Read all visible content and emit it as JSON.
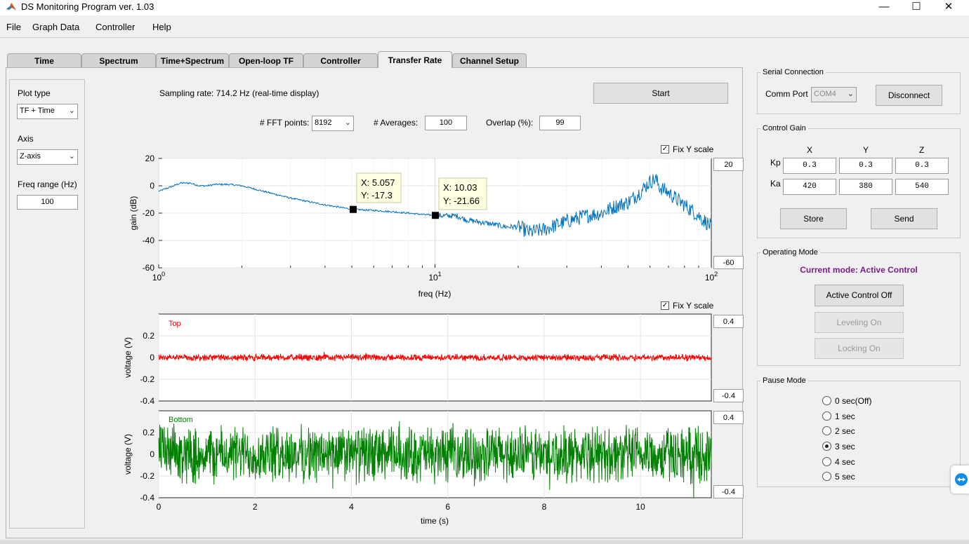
{
  "window": {
    "title": "DS Monitoring Program ver. 1.03"
  },
  "menu": [
    "File",
    "Graph Data",
    "Controller",
    "Help"
  ],
  "tabs": [
    "Time",
    "Spectrum",
    "Time+Spectrum",
    "Open-loop TF",
    "Controller",
    "Transfer Rate",
    "Channel Setup"
  ],
  "active_tab": "Transfer Rate",
  "left_panel": {
    "plot_type_label": "Plot type",
    "plot_type_value": "TF + Time",
    "axis_label": "Axis",
    "axis_value": "Z-axis",
    "freq_range_label": "Freq range (Hz)",
    "freq_range_value": "100"
  },
  "top_controls": {
    "sampling_rate": "Sampling rate: 714.2 Hz (real-time display)",
    "start_label": "Start",
    "fft_points_label": "# FFT points:",
    "fft_points_value": "8192",
    "averages_label": "# Averages:",
    "averages_value": "100",
    "overlap_label": "Overlap (%):",
    "overlap_value": "99"
  },
  "tf_plot": {
    "fix_y_label": "Fix Y scale",
    "fix_y_checked": true,
    "y_max_box": "20",
    "y_min_box": "-60",
    "ylabel": "gain (dB)",
    "xlabel": "freq (Hz)",
    "y_ticks": [
      "20",
      "0",
      "-20",
      "-40",
      "-60"
    ],
    "x_ticks": [
      {
        "base": "10",
        "exp": "0"
      },
      {
        "base": "10",
        "exp": "1"
      },
      {
        "base": "10",
        "exp": "2"
      }
    ],
    "datatips": [
      {
        "x_text": "X: 5.057",
        "y_text": "Y: -17.3"
      },
      {
        "x_text": "X: 10.03",
        "y_text": "Y: -21.66"
      }
    ]
  },
  "time_plots": {
    "fix_y_label": "Fix Y scale",
    "fix_y_checked": true,
    "top_label": "Top",
    "bottom_label": "Bottom",
    "top_max_box": "0.4",
    "top_min_box": "-0.4",
    "bottom_max_box": "0.4",
    "bottom_min_box": "-0.4",
    "ylabel": "voltage (V)",
    "xlabel": "time (s)",
    "y_ticks": [
      "0.2",
      "0",
      "-0.2",
      "-0.4"
    ],
    "x_ticks": [
      "0",
      "2",
      "4",
      "6",
      "8",
      "10"
    ]
  },
  "serial": {
    "title": "Serial Connection",
    "comm_port_label": "Comm Port",
    "comm_port_value": "COM4",
    "disconnect_label": "Disconnect"
  },
  "control_gain": {
    "title": "Control Gain",
    "col_headers": [
      "X",
      "Y",
      "Z"
    ],
    "row_labels": [
      "Kp",
      "Ka"
    ],
    "kp": [
      "0.3",
      "0.3",
      "0.3"
    ],
    "ka": [
      "420",
      "380",
      "540"
    ],
    "store_label": "Store",
    "send_label": "Send"
  },
  "operating_mode": {
    "title": "Operating Mode",
    "current": "Current mode: Active Control",
    "current_color": "#7a1a8c",
    "buttons": [
      "Active Control Off",
      "Leveling On",
      "Locking On"
    ]
  },
  "pause_mode": {
    "title": "Pause Mode",
    "options": [
      "0 sec(Off)",
      "1 sec",
      "2 sec",
      "3 sec",
      "4 sec",
      "5 sec"
    ],
    "selected": "3 sec"
  },
  "colors": {
    "tf_line": "#0072bd",
    "top_line": "#ff0000",
    "bottom_line": "#008000"
  },
  "chart_data": [
    {
      "type": "line",
      "title": "",
      "xlabel": "freq (Hz)",
      "ylabel": "gain (dB)",
      "xscale": "log",
      "xlim": [
        1,
        100
      ],
      "ylim": [
        -60,
        20
      ],
      "grid": true,
      "series": [
        {
          "x": [
            1,
            1.1,
            1.2,
            1.3,
            1.4,
            1.5,
            1.6,
            1.7,
            1.8,
            2,
            2.5,
            3,
            4,
            5.057,
            6,
            7,
            8,
            9,
            10.03,
            11,
            12,
            13,
            14,
            16,
            18,
            20,
            22,
            25,
            28,
            30,
            35,
            40,
            45,
            50,
            55,
            60,
            63,
            65,
            70,
            75,
            80,
            85,
            90,
            95,
            100
          ],
          "y": [
            -4,
            -1,
            2,
            2,
            0,
            0,
            1,
            1,
            1,
            0,
            -5,
            -9,
            -14,
            -17.3,
            -18,
            -19,
            -20,
            -21,
            -21.66,
            -22,
            -22,
            -25,
            -26,
            -28,
            -30,
            -30,
            -34,
            -32,
            -28,
            -26,
            -22,
            -20,
            -15,
            -12,
            -5,
            3,
            5,
            -1,
            -5,
            -10,
            -14,
            -18,
            -22,
            -26,
            -30
          ]
        }
      ]
    },
    {
      "type": "line",
      "label": "Top",
      "xlabel": "time (s)",
      "ylabel": "voltage (V)",
      "xlim": [
        0,
        11.47
      ],
      "ylim": [
        -0.4,
        0.4
      ],
      "grid": true,
      "series": [
        {
          "x": [
            0,
            11.47
          ],
          "y": [
            0,
            0
          ],
          "noise_amplitude": 0.03
        }
      ]
    },
    {
      "type": "line",
      "label": "Bottom",
      "xlabel": "time (s)",
      "ylabel": "voltage (V)",
      "xlim": [
        0,
        11.47
      ],
      "ylim": [
        -0.4,
        0.4
      ],
      "grid": true,
      "series": [
        {
          "x": [
            0,
            11.47
          ],
          "y": [
            0,
            0
          ],
          "noise_amplitude": 0.25
        }
      ]
    }
  ]
}
